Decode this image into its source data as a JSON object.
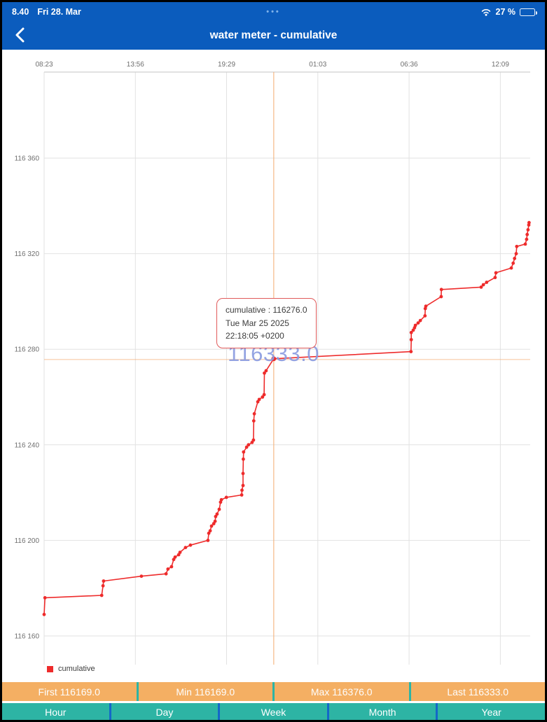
{
  "colors": {
    "app_blue": "#0B5CBD",
    "line_red": "#EE2B2B",
    "crosshair_orange": "#F5A96B",
    "big_label_blue": "#8B9CE0",
    "stats_orange": "#F4AF63",
    "period_teal": "#2DB4A4",
    "divider_blue": "#1467C8",
    "tooltip_border": "#E05A5A",
    "grid": "#E2E2E2",
    "axis_text": "#6E6E6E"
  },
  "status_bar": {
    "time": "8.40",
    "date": "Fri 28. Mar",
    "handle_dots": "•••",
    "battery_percent": "27 %"
  },
  "nav_bar": {
    "title": "water meter - cumulative"
  },
  "chart": {
    "tooltip": {
      "line1": "cumulative : 116276.0",
      "line2": "Tue Mar 25 2025",
      "line3": "22:18:05 +0200"
    },
    "big_value_label": "116333.0",
    "legend_label": "cumulative"
  },
  "chart_data": {
    "type": "line",
    "title": "water meter - cumulative",
    "x_axis_position": "top",
    "grid": true,
    "legend_position": "bottom-left",
    "x_range_minutes": [
      0,
      1774
    ],
    "y_range": [
      116148,
      116396
    ],
    "x_ticks": {
      "minutes": [
        0,
        333,
        666,
        999,
        1332,
        1665
      ],
      "labels": [
        "08:23",
        "13:56",
        "19:29",
        "01:03",
        "06:36",
        "12:09"
      ]
    },
    "y_ticks": {
      "values": [
        116360,
        116320,
        116280,
        116240,
        116200,
        116160
      ],
      "labels": [
        "116 360",
        "116 320",
        "116 280",
        "116 240",
        "116 200",
        "116 160"
      ]
    },
    "highlight_point": {
      "minutes": 838,
      "value": 116276,
      "label": "cumulative : 116276.0  Tue Mar 25 2025 22:18:05 +0200"
    },
    "series": [
      {
        "name": "cumulative",
        "color": "#EE2B2B",
        "points": [
          [
            0,
            116169
          ],
          [
            3,
            116176
          ],
          [
            210,
            116177
          ],
          [
            215,
            116181
          ],
          [
            217,
            116183
          ],
          [
            355,
            116185
          ],
          [
            445,
            116186
          ],
          [
            452,
            116188
          ],
          [
            465,
            116189
          ],
          [
            473,
            116192
          ],
          [
            478,
            116193
          ],
          [
            491,
            116194
          ],
          [
            496,
            116195
          ],
          [
            516,
            116197
          ],
          [
            534,
            116198
          ],
          [
            598,
            116200
          ],
          [
            601,
            116203
          ],
          [
            606,
            116204
          ],
          [
            611,
            116206
          ],
          [
            619,
            116207
          ],
          [
            624,
            116208
          ],
          [
            626,
            116210
          ],
          [
            631,
            116211
          ],
          [
            639,
            116213
          ],
          [
            644,
            116216
          ],
          [
            647,
            116217
          ],
          [
            665,
            116218
          ],
          [
            721,
            116219
          ],
          [
            722,
            116221
          ],
          [
            726,
            116223
          ],
          [
            726,
            116228
          ],
          [
            727,
            116234
          ],
          [
            728,
            116237
          ],
          [
            739,
            116239
          ],
          [
            746,
            116240
          ],
          [
            759,
            116241
          ],
          [
            764,
            116242
          ],
          [
            765,
            116250
          ],
          [
            767,
            116253
          ],
          [
            780,
            116258
          ],
          [
            785,
            116259
          ],
          [
            797,
            116260
          ],
          [
            803,
            116261
          ],
          [
            804,
            116270
          ],
          [
            810,
            116271
          ],
          [
            838,
            116276
          ],
          [
            1339,
            116279
          ],
          [
            1340,
            116284
          ],
          [
            1340,
            116287
          ],
          [
            1347,
            116288
          ],
          [
            1352,
            116289
          ],
          [
            1355,
            116290
          ],
          [
            1365,
            116291
          ],
          [
            1373,
            116292
          ],
          [
            1390,
            116294
          ],
          [
            1391,
            116297
          ],
          [
            1393,
            116298
          ],
          [
            1449,
            116302
          ],
          [
            1450,
            116305
          ],
          [
            1595,
            116306
          ],
          [
            1603,
            116307
          ],
          [
            1615,
            116308
          ],
          [
            1646,
            116310
          ],
          [
            1649,
            116312
          ],
          [
            1705,
            116314
          ],
          [
            1712,
            116316
          ],
          [
            1717,
            116318
          ],
          [
            1723,
            116320
          ],
          [
            1725,
            116323
          ],
          [
            1756,
            116324
          ],
          [
            1761,
            116326
          ],
          [
            1763,
            116328
          ],
          [
            1766,
            116330
          ],
          [
            1769,
            116332
          ],
          [
            1770,
            116333
          ]
        ]
      }
    ],
    "summary": {
      "first": 116169.0,
      "min": 116169.0,
      "max": 116376.0,
      "last": 116333.0
    }
  },
  "stats_bar": {
    "items": [
      "First 116169.0",
      "Min 116169.0",
      "Max 116376.0",
      "Last 116333.0"
    ]
  },
  "period_bar": {
    "items": [
      "Hour",
      "Day",
      "Week",
      "Month",
      "Year"
    ]
  }
}
